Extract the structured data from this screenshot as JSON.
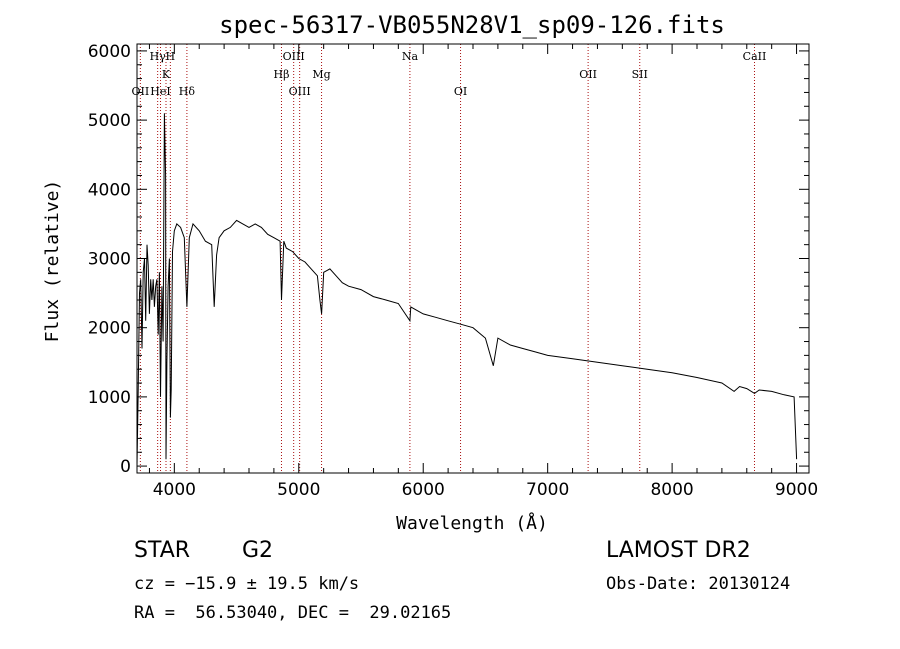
{
  "chart_data": {
    "type": "line",
    "title": "spec-56317-VB055N28V1_sp09-126.fits",
    "xlabel": "Wavelength (Å)",
    "ylabel": "Flux (relative)",
    "xlim": [
      3700,
      9100
    ],
    "ylim": [
      -100,
      6100
    ],
    "xticks": [
      4000,
      5000,
      6000,
      7000,
      8000,
      9000
    ],
    "yticks": [
      0,
      1000,
      2000,
      3000,
      4000,
      5000,
      6000
    ],
    "grid": false,
    "series": [
      {
        "x": [
          3700,
          3710,
          3720,
          3730,
          3740,
          3750,
          3760,
          3770,
          3780,
          3790,
          3800,
          3810,
          3820,
          3830,
          3840,
          3850,
          3860,
          3870,
          3880,
          3889,
          3900,
          3910,
          3920,
          3930,
          3933,
          3940,
          3950,
          3960,
          3968,
          3975,
          3985,
          4000,
          4020,
          4050,
          4080,
          4101,
          4120,
          4150,
          4200,
          4250,
          4300,
          4320,
          4340,
          4360,
          4400,
          4450,
          4500,
          4550,
          4600,
          4650,
          4700,
          4750,
          4800,
          4850,
          4861,
          4880,
          4900,
          4950,
          5000,
          5050,
          5100,
          5150,
          5170,
          5183,
          5200,
          5250,
          5300,
          5350,
          5400,
          5500,
          5600,
          5700,
          5800,
          5893,
          5900,
          5950,
          6000,
          6100,
          6200,
          6300,
          6400,
          6500,
          6563,
          6600,
          6700,
          6800,
          6900,
          7000,
          7200,
          7400,
          7600,
          7800,
          8000,
          8200,
          8400,
          8498,
          8542,
          8600,
          8662,
          8700,
          8800,
          8900,
          8980,
          9000
        ],
        "y": [
          0,
          1100,
          2500,
          2700,
          1700,
          2800,
          3000,
          2100,
          3200,
          2900,
          2200,
          2700,
          2400,
          2700,
          2300,
          2600,
          2700,
          1900,
          2800,
          1000,
          2600,
          1800,
          5100,
          4200,
          100,
          1500,
          2600,
          3000,
          700,
          1100,
          3100,
          3400,
          3500,
          3450,
          3300,
          2300,
          3300,
          3500,
          3400,
          3250,
          3200,
          2300,
          3050,
          3300,
          3400,
          3450,
          3550,
          3500,
          3450,
          3500,
          3450,
          3350,
          3300,
          3250,
          2400,
          3250,
          3150,
          3100,
          3000,
          2950,
          2850,
          2750,
          2400,
          2200,
          2800,
          2850,
          2750,
          2650,
          2600,
          2550,
          2450,
          2400,
          2350,
          2100,
          2300,
          2250,
          2200,
          2150,
          2100,
          2050,
          2000,
          1850,
          1450,
          1850,
          1750,
          1700,
          1650,
          1600,
          1550,
          1500,
          1450,
          1400,
          1350,
          1280,
          1200,
          1080,
          1150,
          1120,
          1050,
          1100,
          1080,
          1030,
          1000,
          100
        ]
      }
    ],
    "line_labels": [
      {
        "label": "Hγ",
        "x": 3866,
        "row": 0
      },
      {
        "label": "H",
        "x": 3968,
        "row": 0
      },
      {
        "label": "OIII",
        "x": 4959,
        "row": 0
      },
      {
        "label": "Na",
        "x": 5893,
        "row": 0
      },
      {
        "label": "CaII",
        "x": 8662,
        "row": 0
      },
      {
        "label": "K",
        "x": 3933,
        "row": 1
      },
      {
        "label": "Hβ",
        "x": 4861,
        "row": 1
      },
      {
        "label": "Mg",
        "x": 5183,
        "row": 1
      },
      {
        "label": "OII",
        "x": 7325,
        "row": 1
      },
      {
        "label": "SII",
        "x": 7740,
        "row": 1
      },
      {
        "label": "OII",
        "x": 3727,
        "row": 2
      },
      {
        "label": "HeI",
        "x": 3889,
        "row": 2
      },
      {
        "label": "Hδ",
        "x": 4101,
        "row": 2
      },
      {
        "label": "OIII",
        "x": 5007,
        "row": 2
      },
      {
        "label": "OI",
        "x": 6300,
        "row": 2
      }
    ],
    "marker_lines": [
      3727,
      3866,
      3889,
      3933,
      3968,
      4101,
      4861,
      4959,
      5007,
      5183,
      5893,
      6300,
      7325,
      7740,
      8662
    ],
    "marker_color": "#aa1111",
    "line_color": "#000000"
  },
  "info": {
    "class": "STAR",
    "subclass": "G2",
    "survey": "LAMOST DR2",
    "cz": "cz = −15.9 ± 19.5 km/s",
    "obs_date": "Obs-Date: 20130124",
    "coords": "RA =  56.53040, DEC =  29.02165"
  }
}
